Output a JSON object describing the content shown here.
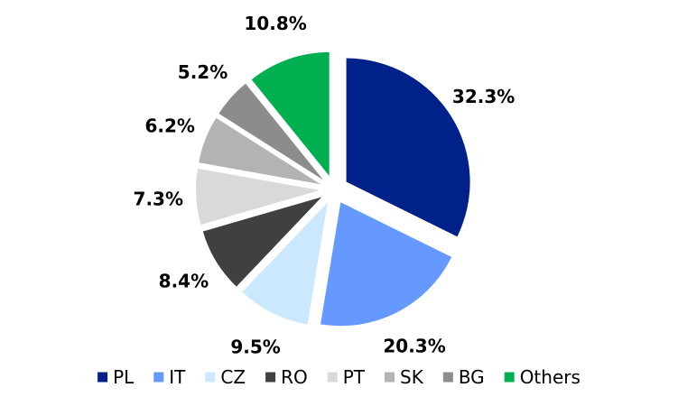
{
  "chart_data": {
    "type": "pie",
    "title": "",
    "categories": [
      "PL",
      "IT",
      "CZ",
      "RO",
      "PT",
      "SK",
      "BG",
      "Others"
    ],
    "values": [
      32.3,
      20.3,
      9.5,
      8.4,
      7.3,
      6.2,
      5.2,
      10.8
    ],
    "labels": [
      "32.3%",
      "20.3%",
      "9.5%",
      "8.4%",
      "7.3%",
      "6.2%",
      "5.2%",
      "10.8%"
    ],
    "colors": [
      "#00208A",
      "#6699FF",
      "#CCE8FF",
      "#404040",
      "#D9D9D9",
      "#B3B3B3",
      "#8C8C8C",
      "#00B050"
    ],
    "legend_position": "bottom",
    "exploded": true
  }
}
